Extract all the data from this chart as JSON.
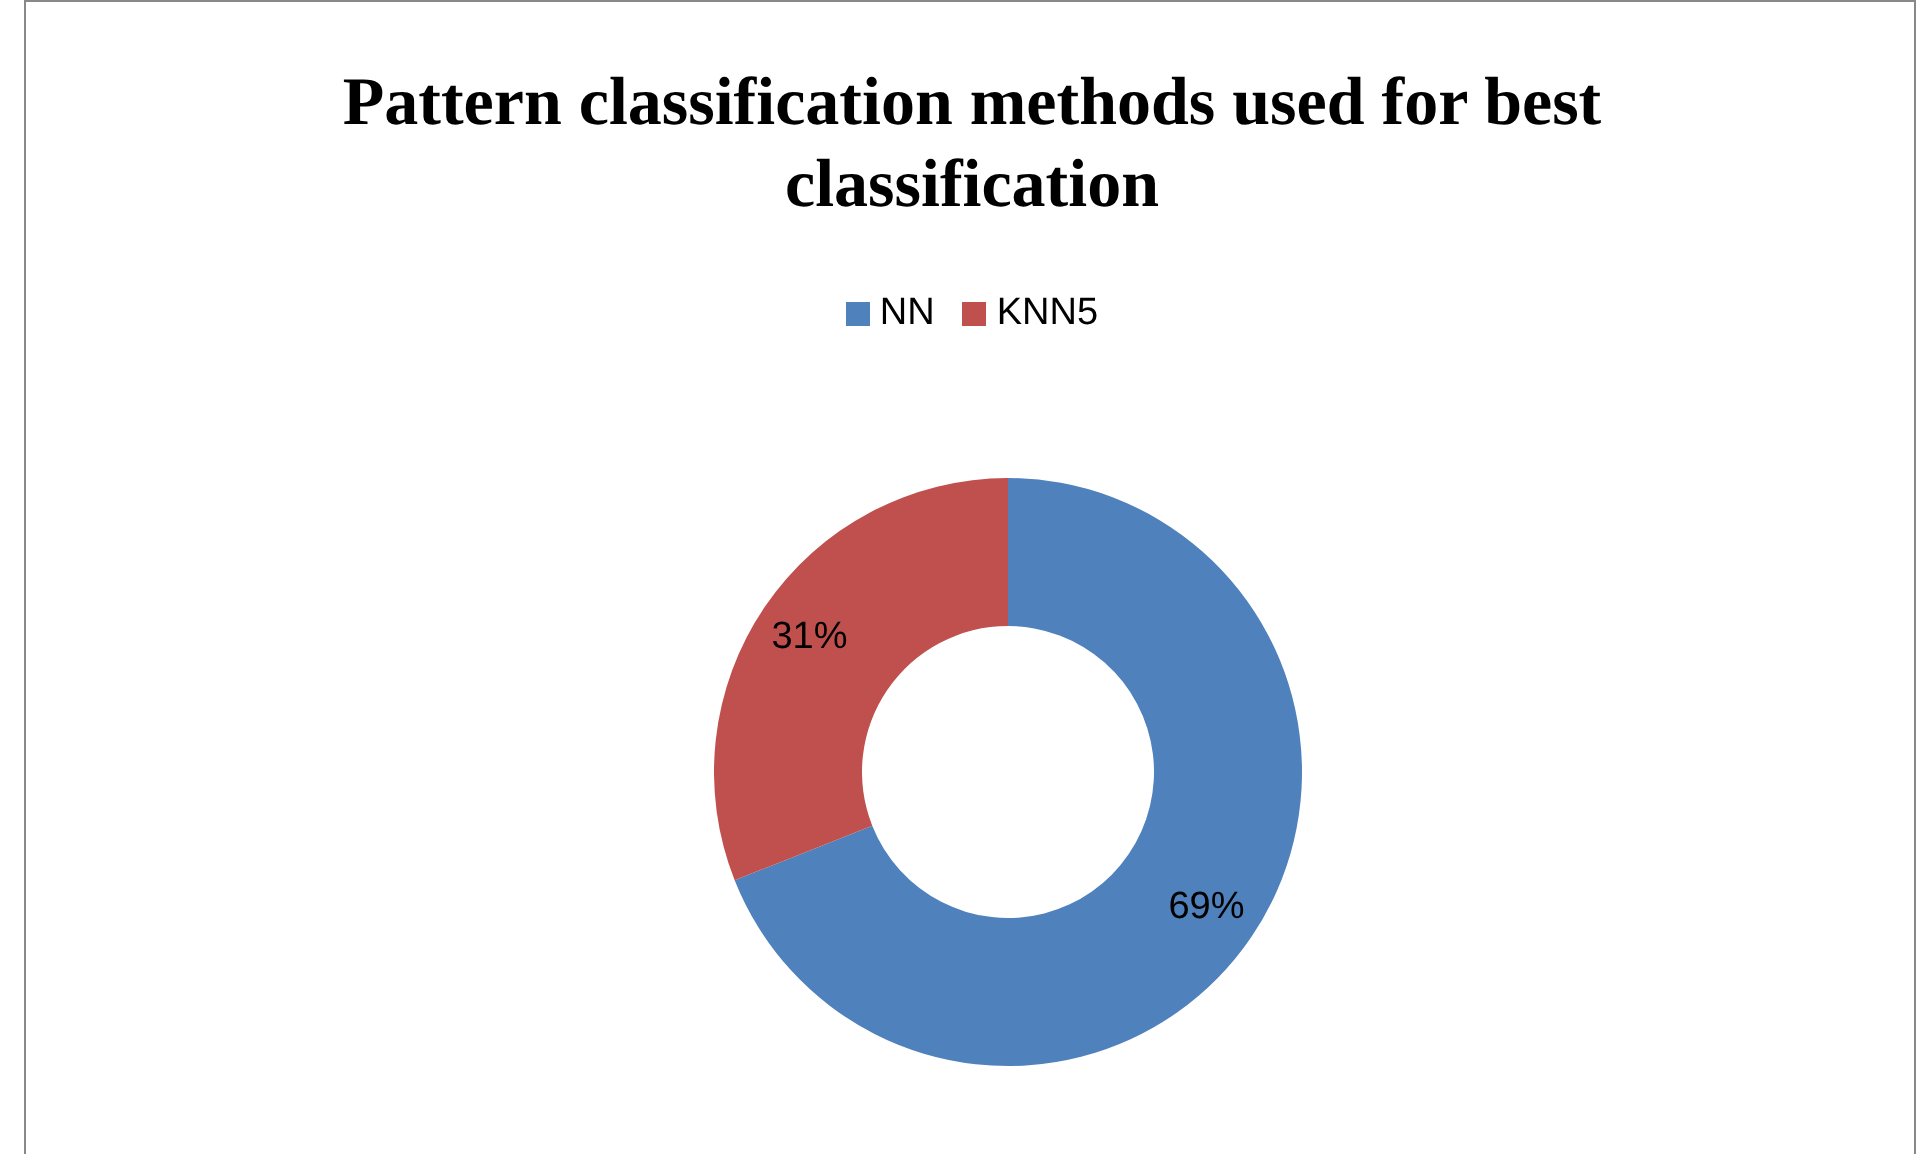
{
  "chart_data": {
    "type": "donut",
    "title": "Pattern classification methods used for best classification",
    "categories": [
      "NN",
      "KNN5"
    ],
    "values": [
      69,
      31
    ],
    "colors": [
      "#4f81bd",
      "#c0504d"
    ],
    "value_labels": [
      "69%",
      "31%"
    ],
    "legend": "top"
  }
}
